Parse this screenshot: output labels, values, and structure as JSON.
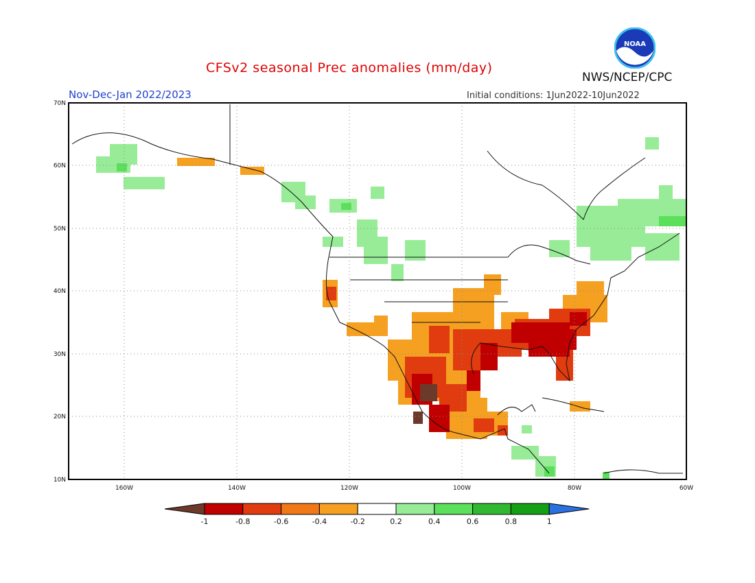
{
  "header": {
    "title": "CFSv2 seasonal Prec anomalies (mm/day)",
    "period": "Nov-Dec-Jan 2022/2023",
    "initial_conditions": "Initial conditions: 1Jun2022-10Jun2022",
    "agency": "NWS/NCEP/CPC",
    "logo_text": "NOAA"
  },
  "map": {
    "lat_labels": [
      "70N",
      "60N",
      "50N",
      "40N",
      "30N",
      "20N",
      "10N"
    ],
    "lon_labels": [
      "160W",
      "140W",
      "120W",
      "100W",
      "80W",
      "60W"
    ],
    "grid": "dotted"
  },
  "colorbar": {
    "tick_labels": [
      "-1",
      "-0.8",
      "-0.6",
      "-0.4",
      "-0.2",
      "0.2",
      "0.4",
      "0.6",
      "0.8",
      "1"
    ],
    "colors": [
      "#6b3a2a",
      "#c00000",
      "#e03c10",
      "#f07818",
      "#f5a020",
      "#ffffff",
      "#98ec98",
      "#5ce05c",
      "#30b830",
      "#14a014",
      "#2a70e0"
    ]
  },
  "palette": {
    "wet_light": "#98ec98",
    "wet_mid": "#5ce05c",
    "wet_dark": "#30b830",
    "dry_light": "#f5a020",
    "dry_mid": "#e03c10",
    "dry_dark": "#c00000",
    "dry_extreme": "#6b3a2a"
  }
}
